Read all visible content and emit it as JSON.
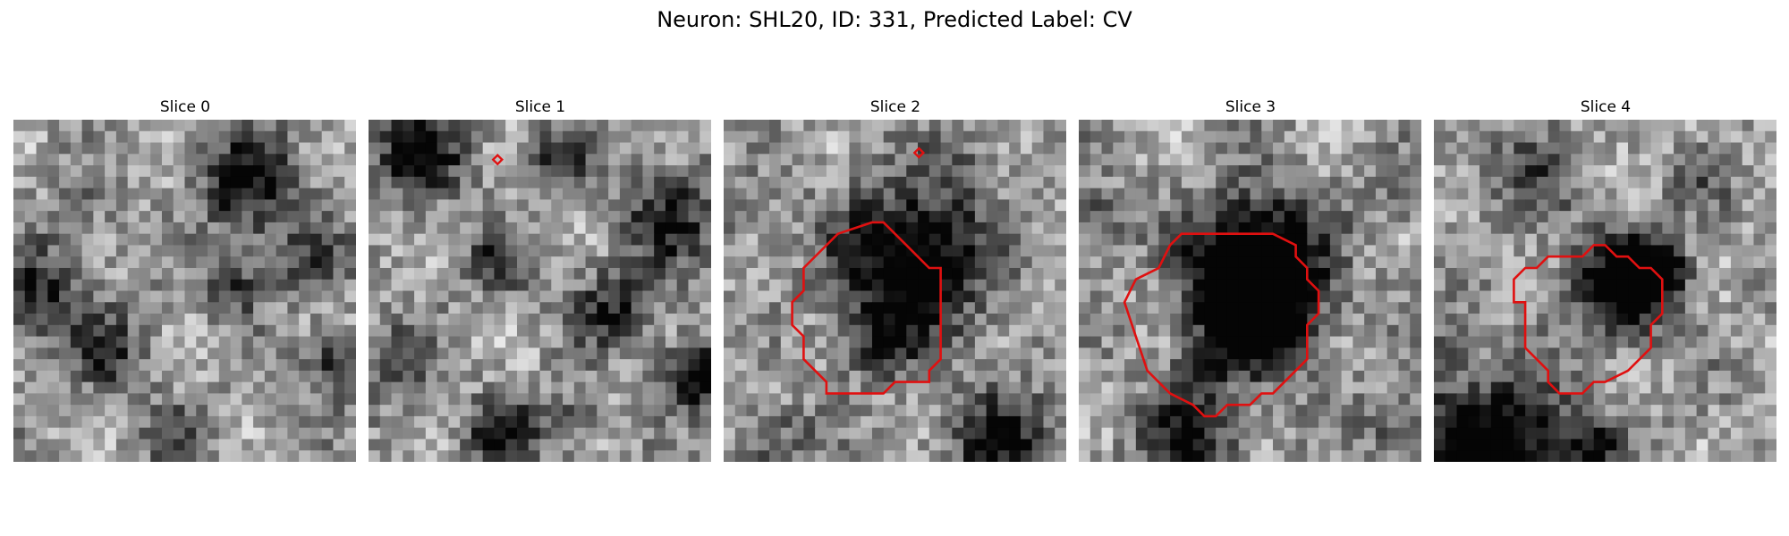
{
  "figure": {
    "title": "Neuron: SHL20, ID: 331, Predicted Label: CV"
  },
  "panels": [
    {
      "title": "Slice 0",
      "seed": 11,
      "has_contour": false,
      "has_marker": false
    },
    {
      "title": "Slice 1",
      "seed": 27,
      "has_contour": false,
      "has_marker": true
    },
    {
      "title": "Slice 2",
      "seed": 43,
      "has_contour": true,
      "has_marker": true
    },
    {
      "title": "Slice 3",
      "seed": 59,
      "has_contour": true,
      "has_marker": false
    },
    {
      "title": "Slice 4",
      "seed": 71,
      "has_contour": true,
      "has_marker": false
    }
  ],
  "colors": {
    "contour": "#e01010",
    "background": "#ffffff"
  }
}
